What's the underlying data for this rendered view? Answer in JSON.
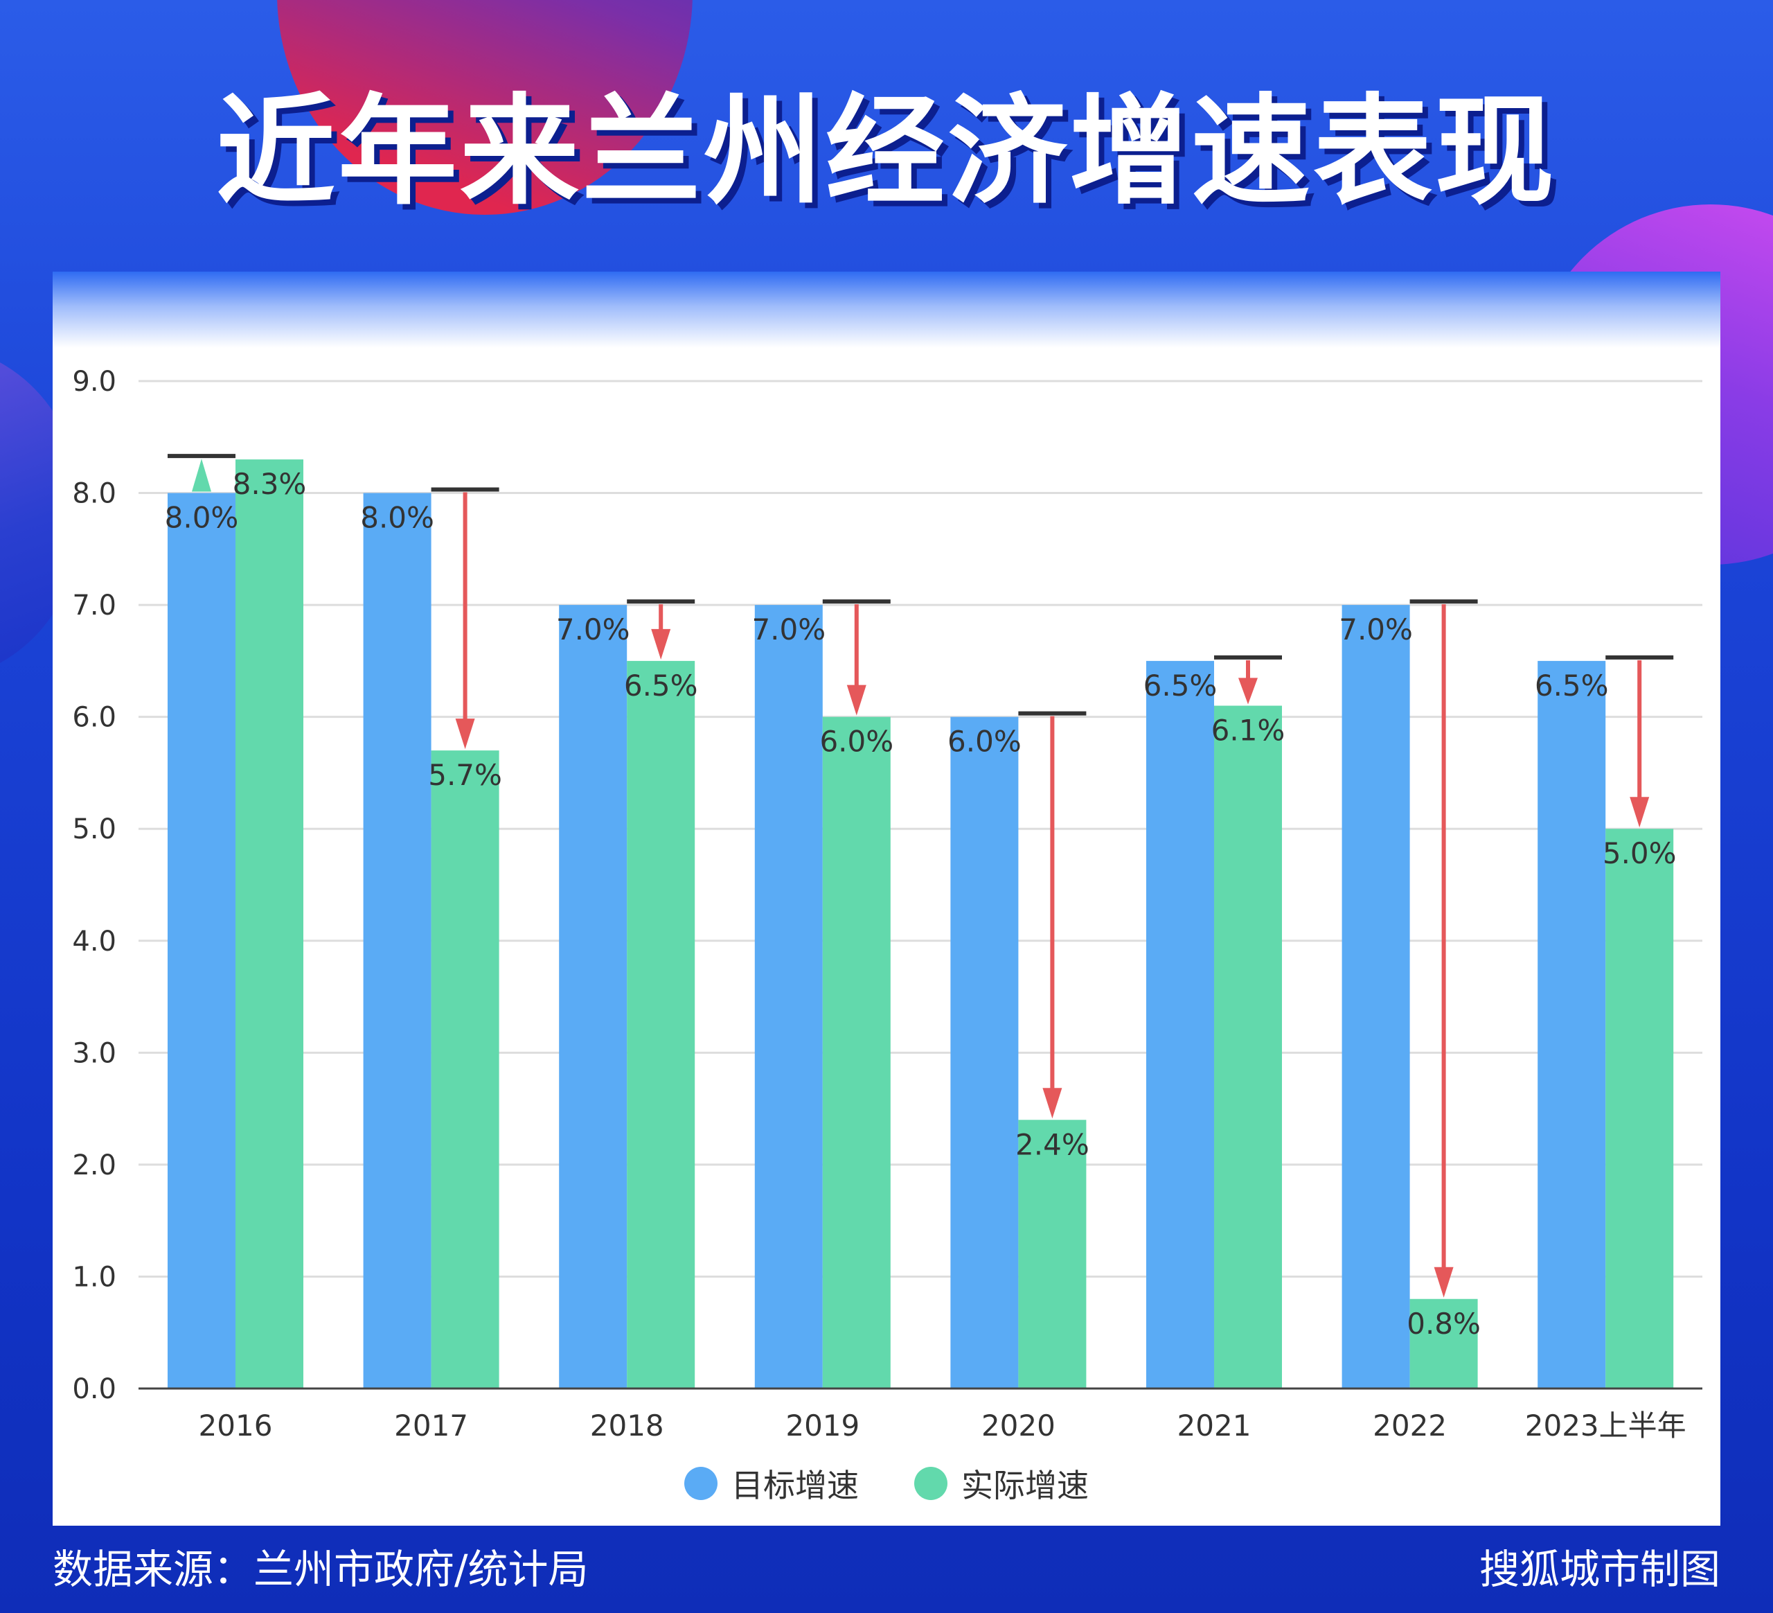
{
  "title": "近年来兰州经济增速表现",
  "footer": {
    "source": "数据来源：兰州市政府/统计局",
    "credit": "搜狐城市制图"
  },
  "colors": {
    "target": "#5aabf5",
    "actual": "#62d9ac",
    "arrow_down": "#e5585a",
    "arrow_up": "#62d9ac",
    "marker": "#333333",
    "grid": "#dddddd"
  },
  "chart_data": {
    "type": "bar",
    "categories": [
      "2016",
      "2017",
      "2018",
      "2019",
      "2020",
      "2021",
      "2022",
      "2023上半年"
    ],
    "series": [
      {
        "name": "目标增速",
        "values": [
          8.0,
          8.0,
          7.0,
          7.0,
          6.0,
          6.5,
          7.0,
          6.5
        ]
      },
      {
        "name": "实际增速",
        "values": [
          8.3,
          5.7,
          6.5,
          6.0,
          2.4,
          6.1,
          0.8,
          5.0
        ]
      }
    ],
    "data_labels": {
      "target": [
        "8.0%",
        "8.0%",
        "7.0%",
        "7.0%",
        "6.0%",
        "6.5%",
        "7.0%",
        "6.5%"
      ],
      "actual": [
        "8.3%",
        "5.7%",
        "6.5%",
        "6.0%",
        "2.4%",
        "6.1%",
        "0.8%",
        "5.0%"
      ]
    },
    "yticks": [
      "0.0",
      "1.0",
      "2.0",
      "3.0",
      "4.0",
      "5.0",
      "6.0",
      "7.0",
      "8.0",
      "9.0"
    ],
    "ylim": [
      0,
      9
    ],
    "grid": true,
    "legend_position": "bottom-center"
  }
}
